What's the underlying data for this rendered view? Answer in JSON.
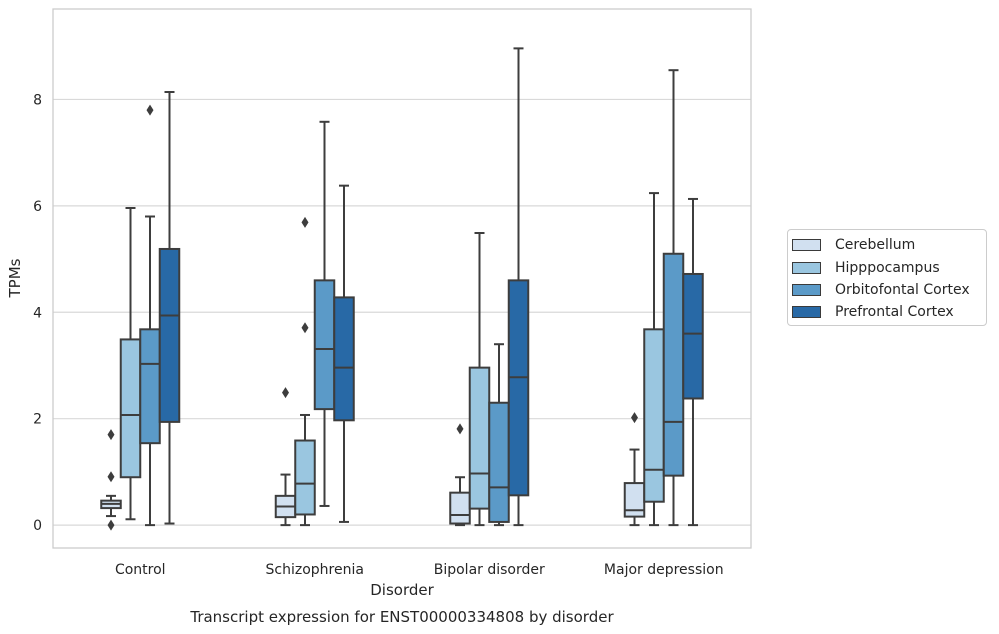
{
  "chart_data": {
    "type": "box",
    "title": "Transcript expression for ENST00000334808 by disorder",
    "xlabel": "Disorder",
    "ylabel": "TPMs",
    "ylim": [
      -0.43,
      9.7
    ],
    "yticks": [
      0,
      2,
      4,
      6,
      8
    ],
    "grid": "horizontal",
    "legend_position": "right",
    "categories": [
      "Control",
      "Schizophrenia",
      "Bipolar disorder",
      "Major depression"
    ],
    "series": [
      {
        "name": "Cerebellum",
        "color": "#d1e0f0",
        "boxes": [
          {
            "whislo": 0.17,
            "q1": 0.32,
            "med": 0.4,
            "q3": 0.46,
            "whishi": 0.55,
            "fliers": [
              0.0,
              0.91,
              1.7
            ]
          },
          {
            "whislo": 0.0,
            "q1": 0.15,
            "med": 0.35,
            "q3": 0.55,
            "whishi": 0.95,
            "fliers": [
              2.49
            ]
          },
          {
            "whislo": 0.0,
            "q1": 0.03,
            "med": 0.19,
            "q3": 0.61,
            "whishi": 0.9,
            "fliers": [
              1.81
            ]
          },
          {
            "whislo": 0.0,
            "q1": 0.16,
            "med": 0.28,
            "q3": 0.79,
            "whishi": 1.42,
            "fliers": [
              2.02
            ]
          }
        ]
      },
      {
        "name": "Hipppocampus",
        "color": "#9ac6e0",
        "boxes": [
          {
            "whislo": 0.11,
            "q1": 0.9,
            "med": 2.07,
            "q3": 3.49,
            "whishi": 5.96,
            "fliers": []
          },
          {
            "whislo": 0.0,
            "q1": 0.2,
            "med": 0.78,
            "q3": 1.59,
            "whishi": 2.07,
            "fliers": [
              3.71,
              5.69
            ]
          },
          {
            "whislo": 0.0,
            "q1": 0.31,
            "med": 0.97,
            "q3": 2.96,
            "whishi": 5.49,
            "fliers": []
          },
          {
            "whislo": 0.0,
            "q1": 0.44,
            "med": 1.04,
            "q3": 3.68,
            "whishi": 6.24,
            "fliers": []
          }
        ]
      },
      {
        "name": "Orbitofontal Cortex",
        "color": "#5b9ac8",
        "boxes": [
          {
            "whislo": 0.0,
            "q1": 1.54,
            "med": 3.03,
            "q3": 3.68,
            "whishi": 5.8,
            "fliers": [
              7.8
            ]
          },
          {
            "whislo": 0.36,
            "q1": 2.18,
            "med": 3.31,
            "q3": 4.6,
            "whishi": 7.58,
            "fliers": []
          },
          {
            "whislo": 0.0,
            "q1": 0.06,
            "med": 0.71,
            "q3": 2.3,
            "whishi": 3.4,
            "fliers": []
          },
          {
            "whislo": 0.0,
            "q1": 0.93,
            "med": 1.94,
            "q3": 5.1,
            "whishi": 8.55,
            "fliers": []
          }
        ]
      },
      {
        "name": "Prefrontal Cortex",
        "color": "#2869a6",
        "boxes": [
          {
            "whislo": 0.03,
            "q1": 1.94,
            "med": 3.94,
            "q3": 5.19,
            "whishi": 8.14,
            "fliers": []
          },
          {
            "whislo": 0.06,
            "q1": 1.97,
            "med": 2.96,
            "q3": 4.28,
            "whishi": 6.38,
            "fliers": []
          },
          {
            "whislo": 0.0,
            "q1": 0.56,
            "med": 2.78,
            "q3": 4.6,
            "whishi": 8.96,
            "fliers": []
          },
          {
            "whislo": 0.0,
            "q1": 2.38,
            "med": 3.6,
            "q3": 4.72,
            "whishi": 6.13,
            "fliers": []
          }
        ]
      }
    ]
  }
}
